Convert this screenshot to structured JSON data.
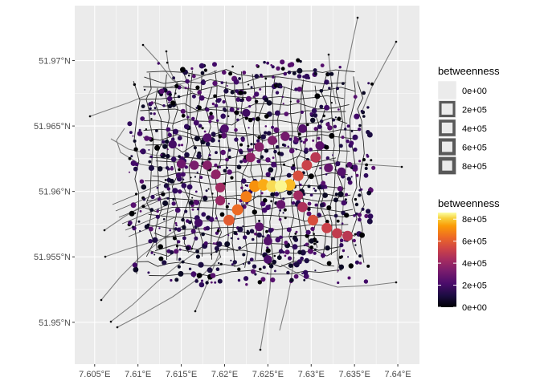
{
  "chart_data": {
    "type": "map",
    "description_free": true,
    "x_ticks": [
      "7.605°E",
      "7.61°E",
      "7.615°E",
      "7.62°E",
      "7.625°E",
      "7.63°E",
      "7.635°E",
      "7.64°E"
    ],
    "y_ticks": [
      "51.97°N",
      "51.965°N",
      "51.96°N",
      "51.955°N",
      "51.95°N"
    ],
    "x_tick_values": [
      7.605,
      7.61,
      7.615,
      7.62,
      7.625,
      7.63,
      7.635,
      7.64
    ],
    "y_tick_values": [
      51.97,
      51.965,
      51.96,
      51.955,
      51.95
    ],
    "xlim": [
      7.6027,
      7.6425
    ],
    "ylim": [
      51.9468,
      51.9742
    ],
    "grid": true,
    "panel_background": "#ebebeb",
    "gridline_color": "#ffffff",
    "road_color": "#7f7f7f",
    "legends": [
      {
        "title": "betweenness",
        "kind": "size",
        "labels": [
          "0e+00",
          "2e+05",
          "4e+05",
          "6e+05",
          "8e+05"
        ]
      },
      {
        "title": "betweenness",
        "kind": "colorbar",
        "palette": "inferno",
        "labels": [
          "8e+05",
          "6e+05",
          "4e+05",
          "2e+05",
          "0e+00"
        ],
        "label_values": [
          800000,
          600000,
          400000,
          200000,
          0
        ],
        "range": [
          0,
          860000
        ]
      }
    ],
    "high_betweenness_nodes": [
      {
        "x": 7.6265,
        "y": 51.9604,
        "betweenness": 850000
      },
      {
        "x": 7.6255,
        "y": 51.9604,
        "betweenness": 820000
      },
      {
        "x": 7.6275,
        "y": 51.9605,
        "betweenness": 780000
      },
      {
        "x": 7.6245,
        "y": 51.9605,
        "betweenness": 760000
      },
      {
        "x": 7.6235,
        "y": 51.9604,
        "betweenness": 720000
      },
      {
        "x": 7.6225,
        "y": 51.9596,
        "betweenness": 680000
      },
      {
        "x": 7.6215,
        "y": 51.9586,
        "betweenness": 640000
      },
      {
        "x": 7.6205,
        "y": 51.9578,
        "betweenness": 600000
      },
      {
        "x": 7.6285,
        "y": 51.9612,
        "betweenness": 560000
      },
      {
        "x": 7.6295,
        "y": 51.962,
        "betweenness": 520000
      },
      {
        "x": 7.6305,
        "y": 51.9626,
        "betweenness": 480000
      },
      {
        "x": 7.6302,
        "y": 51.9578,
        "betweenness": 560000
      },
      {
        "x": 7.6318,
        "y": 51.9572,
        "betweenness": 520000
      },
      {
        "x": 7.633,
        "y": 51.9568,
        "betweenness": 500000
      },
      {
        "x": 7.6342,
        "y": 51.9566,
        "betweenness": 480000
      },
      {
        "x": 7.629,
        "y": 51.9588,
        "betweenness": 450000
      },
      {
        "x": 7.6285,
        "y": 51.9597,
        "betweenness": 420000
      },
      {
        "x": 7.6195,
        "y": 51.9603,
        "betweenness": 420000
      },
      {
        "x": 7.6195,
        "y": 51.9593,
        "betweenness": 400000
      },
      {
        "x": 7.619,
        "y": 51.9613,
        "betweenness": 380000
      },
      {
        "x": 7.618,
        "y": 51.962,
        "betweenness": 360000
      },
      {
        "x": 7.6165,
        "y": 51.962,
        "betweenness": 330000
      },
      {
        "x": 7.615,
        "y": 51.9621,
        "betweenness": 300000
      },
      {
        "x": 7.623,
        "y": 51.9626,
        "betweenness": 380000
      },
      {
        "x": 7.624,
        "y": 51.9634,
        "betweenness": 360000
      },
      {
        "x": 7.6255,
        "y": 51.9639,
        "betweenness": 340000
      },
      {
        "x": 7.627,
        "y": 51.9642,
        "betweenness": 320000
      },
      {
        "x": 7.618,
        "y": 51.9641,
        "betweenness": 240000
      },
      {
        "x": 7.62,
        "y": 51.9648,
        "betweenness": 230000
      },
      {
        "x": 7.629,
        "y": 51.9648,
        "betweenness": 240000
      },
      {
        "x": 7.631,
        "y": 51.9635,
        "betweenness": 260000
      },
      {
        "x": 7.632,
        "y": 51.9618,
        "betweenness": 280000
      },
      {
        "x": 7.6335,
        "y": 51.9615,
        "betweenness": 240000
      },
      {
        "x": 7.625,
        "y": 51.9548,
        "betweenness": 220000
      },
      {
        "x": 7.625,
        "y": 51.9562,
        "betweenness": 240000
      },
      {
        "x": 7.617,
        "y": 51.9576,
        "betweenness": 200000
      },
      {
        "x": 7.614,
        "y": 51.9636,
        "betweenness": 200000
      },
      {
        "x": 7.6225,
        "y": 51.966,
        "betweenness": 190000
      },
      {
        "x": 7.624,
        "y": 51.9573,
        "betweenness": 260000
      },
      {
        "x": 7.6265,
        "y": 51.959,
        "betweenness": 280000
      }
    ]
  }
}
